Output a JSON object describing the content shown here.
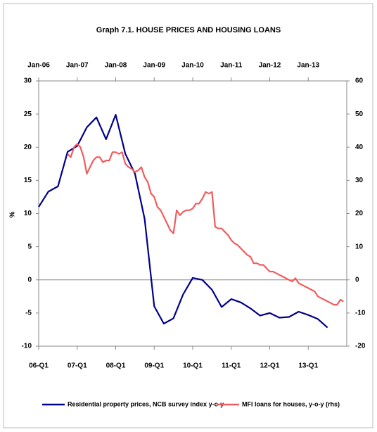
{
  "chart_data": {
    "type": "line",
    "title": "Graph 7.1. HOUSE PRICES AND HOUSING LOANS",
    "ylabel": "%",
    "xlim": [
      "Jan-06",
      "Jan-14"
    ],
    "xticks": [
      "06-Q1",
      "07-Q1",
      "08-Q1",
      "09-Q1",
      "10-Q1",
      "11-Q1",
      "12-Q1",
      "13-Q1"
    ],
    "x2ticks": [
      "Jan-06",
      "Jan-07",
      "Jan-08",
      "Jan-09",
      "Jan-10",
      "Jan-11",
      "Jan-12",
      "Jan-13"
    ],
    "ylim": [
      -10,
      30
    ],
    "yticks": [
      -10,
      -5,
      0,
      5,
      10,
      15,
      20,
      25,
      30
    ],
    "y2lim": [
      -20,
      60
    ],
    "y2ticks": [
      -20,
      -10,
      0,
      10,
      20,
      30,
      40,
      50,
      60
    ],
    "series": [
      {
        "name": "Residential property prices, NCB survey index y-o-y",
        "color": "#00008b",
        "x": [
          "06-Q1",
          "06-Q2",
          "06-Q3",
          "06-Q4",
          "07-Q1",
          "07-Q2",
          "07-Q3",
          "07-Q4",
          "08-Q1",
          "08-Q2",
          "08-Q3",
          "08-Q4",
          "09-Q1",
          "09-Q2",
          "09-Q3",
          "09-Q4",
          "10-Q1",
          "10-Q2",
          "10-Q3",
          "10-Q4",
          "11-Q1",
          "11-Q2",
          "11-Q3",
          "11-Q4",
          "12-Q1",
          "12-Q2",
          "12-Q3",
          "12-Q4",
          "13-Q1",
          "13-Q2",
          "13-Q3"
        ],
        "values": [
          11,
          13.3,
          14.1,
          19.3,
          20.2,
          23,
          24.5,
          21.2,
          24.9,
          19,
          16,
          9.2,
          -4,
          -6.6,
          -5.8,
          -2.2,
          0.3,
          0,
          -1.5,
          -4.1,
          -2.9,
          -3.4,
          -4.3,
          -5.4,
          -5,
          -5.7,
          -5.6,
          -4.8,
          -5.3,
          -5.9,
          -7.2
        ]
      },
      {
        "name": "MFI loans for houses, y-o-y (rhs)",
        "color": "#f25c5c",
        "axis": "y2",
        "x": [
          "Oct-06",
          "Nov-06",
          "Dec-06",
          "Jan-07",
          "Feb-07",
          "Mar-07",
          "Apr-07",
          "May-07",
          "Jun-07",
          "Jul-07",
          "Aug-07",
          "Sep-07",
          "Oct-07",
          "Nov-07",
          "Dec-07",
          "Jan-08",
          "Feb-08",
          "Mar-08",
          "Apr-08",
          "May-08",
          "Jun-08",
          "Jul-08",
          "Aug-08",
          "Sep-08",
          "Oct-08",
          "Nov-08",
          "Dec-08",
          "Jan-09",
          "Feb-09",
          "Mar-09",
          "Apr-09",
          "May-09",
          "Jun-09",
          "Jul-09",
          "Aug-09",
          "Sep-09",
          "Oct-09",
          "Nov-09",
          "Dec-09",
          "Jan-10",
          "Feb-10",
          "Mar-10",
          "Apr-10",
          "May-10",
          "Jun-10",
          "Jul-10",
          "Aug-10",
          "Sep-10",
          "Oct-10",
          "Nov-10",
          "Dec-10",
          "Jan-11",
          "Feb-11",
          "Mar-11",
          "Apr-11",
          "May-11",
          "Jun-11",
          "Jul-11",
          "Aug-11",
          "Sep-11",
          "Oct-11",
          "Nov-11",
          "Dec-11",
          "Jan-12",
          "Feb-12",
          "Mar-12",
          "Apr-12",
          "May-12",
          "Jun-12",
          "Jul-12",
          "Aug-12",
          "Sep-12",
          "Oct-12",
          "Nov-12",
          "Dec-12",
          "Jan-13",
          "Feb-13",
          "Mar-13",
          "Apr-13",
          "May-13",
          "Jun-13",
          "Jul-13",
          "Aug-13",
          "Sep-13",
          "Oct-13",
          "Nov-13",
          "Dec-13"
        ],
        "values": [
          38,
          37,
          40,
          41,
          40,
          37,
          32,
          34,
          36,
          37,
          37,
          35.5,
          36,
          36,
          38.5,
          38.5,
          38,
          38.5,
          35,
          34,
          33.5,
          32.5,
          33,
          34,
          31,
          29.5,
          26,
          25,
          22,
          21,
          19,
          17,
          15,
          14,
          21,
          19.5,
          20.5,
          21,
          21,
          21.5,
          23,
          23,
          24.5,
          26.5,
          26,
          26.5,
          16,
          15.5,
          15.5,
          14.5,
          13.5,
          12,
          11,
          10.5,
          9.5,
          8.5,
          7.5,
          7,
          5,
          5,
          4.5,
          4.5,
          3.5,
          2.5,
          2.5,
          2,
          1.5,
          1,
          0.5,
          0,
          -0.5,
          0.5,
          -1,
          -1.5,
          -2,
          -2.5,
          -3,
          -3.5,
          -5,
          -5.5,
          -6,
          -6.5,
          -7,
          -7.5,
          -7.5,
          -6,
          -6.5
        ]
      }
    ]
  }
}
